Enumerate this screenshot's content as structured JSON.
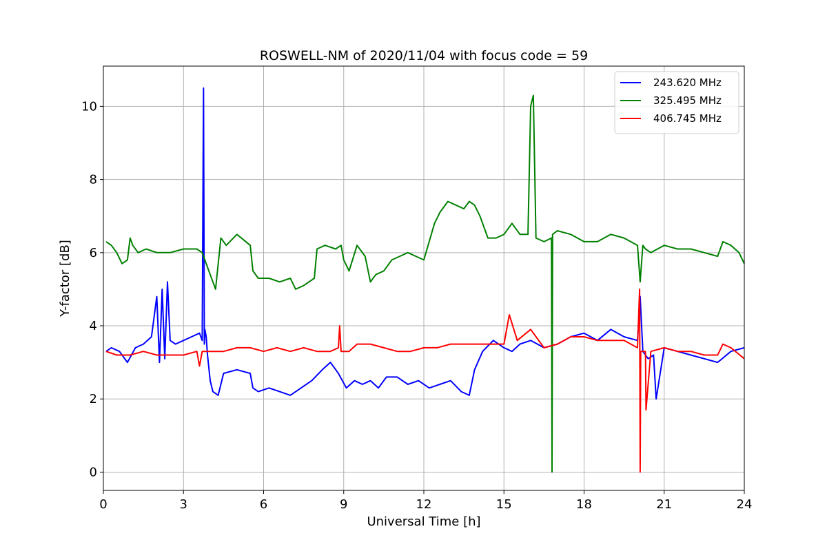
{
  "chart_data": {
    "type": "line",
    "title": "ROSWELL-NM of 2020/11/04 with focus code = 59",
    "xlabel": "Universal Time [h]",
    "ylabel": "Y-factor [dB]",
    "xlim": [
      0,
      24
    ],
    "ylim": [
      -0.5,
      11.1
    ],
    "xticks": [
      0,
      3,
      6,
      9,
      12,
      15,
      18,
      21,
      24
    ],
    "yticks": [
      0,
      2,
      4,
      6,
      8,
      10
    ],
    "grid": true,
    "legend_position": "top-right",
    "series": [
      {
        "name": "243.620 MHz",
        "color": "#0000ff",
        "x": [
          0.1,
          0.3,
          0.6,
          0.9,
          1.2,
          1.5,
          1.8,
          2.0,
          2.1,
          2.2,
          2.3,
          2.4,
          2.5,
          2.7,
          3.0,
          3.3,
          3.6,
          3.7,
          3.75,
          3.78,
          3.8,
          3.85,
          3.9,
          4.0,
          4.1,
          4.3,
          4.5,
          5.0,
          5.5,
          5.6,
          5.8,
          6.2,
          6.6,
          7.0,
          7.4,
          7.8,
          8.2,
          8.5,
          8.8,
          9.1,
          9.4,
          9.7,
          10.0,
          10.3,
          10.6,
          11.0,
          11.4,
          11.8,
          12.2,
          12.6,
          13.0,
          13.4,
          13.7,
          13.9,
          14.2,
          14.6,
          15.0,
          15.3,
          15.6,
          16.0,
          16.5,
          17.0,
          17.5,
          18.0,
          18.5,
          19.0,
          19.5,
          20.0,
          20.1,
          20.2,
          20.4,
          20.6,
          20.7,
          21.0,
          21.5,
          22.0,
          22.5,
          23.0,
          23.5,
          24.0
        ],
        "y": [
          3.3,
          3.4,
          3.3,
          3.0,
          3.4,
          3.5,
          3.7,
          4.8,
          3.0,
          5.0,
          3.1,
          5.2,
          3.6,
          3.5,
          3.6,
          3.7,
          3.8,
          3.6,
          10.5,
          3.5,
          3.9,
          3.7,
          3.2,
          2.5,
          2.2,
          2.1,
          2.7,
          2.8,
          2.7,
          2.3,
          2.2,
          2.3,
          2.2,
          2.1,
          2.3,
          2.5,
          2.8,
          3.0,
          2.7,
          2.3,
          2.5,
          2.4,
          2.5,
          2.3,
          2.6,
          2.6,
          2.4,
          2.5,
          2.3,
          2.4,
          2.5,
          2.2,
          2.1,
          2.8,
          3.3,
          3.6,
          3.4,
          3.3,
          3.5,
          3.6,
          3.4,
          3.5,
          3.7,
          3.8,
          3.6,
          3.9,
          3.7,
          3.6,
          4.8,
          3.3,
          3.1,
          3.2,
          2.0,
          3.4,
          3.3,
          3.2,
          3.1,
          3.0,
          3.3,
          3.4
        ]
      },
      {
        "name": "325.495 MHz",
        "color": "#008000",
        "x": [
          0.1,
          0.3,
          0.5,
          0.7,
          0.9,
          1.0,
          1.1,
          1.3,
          1.6,
          2.0,
          2.5,
          3.0,
          3.5,
          3.7,
          3.8,
          3.9,
          4.0,
          4.2,
          4.4,
          4.6,
          5.0,
          5.5,
          5.6,
          5.8,
          6.2,
          6.6,
          7.0,
          7.2,
          7.5,
          7.9,
          8.0,
          8.3,
          8.7,
          8.9,
          9.0,
          9.2,
          9.5,
          9.8,
          10.0,
          10.2,
          10.5,
          10.8,
          11.1,
          11.4,
          11.7,
          12.0,
          12.4,
          12.6,
          12.9,
          13.2,
          13.5,
          13.7,
          13.9,
          14.1,
          14.4,
          14.7,
          15.0,
          15.3,
          15.6,
          15.9,
          16.0,
          16.1,
          16.2,
          16.5,
          16.78,
          16.8,
          16.82,
          17.0,
          17.5,
          18.0,
          18.5,
          19.0,
          19.5,
          20.0,
          20.1,
          20.2,
          20.3,
          20.5,
          21.0,
          21.5,
          22.0,
          22.5,
          23.0,
          23.2,
          23.5,
          23.8,
          24.0
        ],
        "y": [
          6.3,
          6.2,
          6.0,
          5.7,
          5.8,
          6.4,
          6.2,
          6.0,
          6.1,
          6.0,
          6.0,
          6.1,
          6.1,
          6.0,
          5.8,
          5.6,
          5.4,
          5.0,
          6.4,
          6.2,
          6.5,
          6.2,
          5.5,
          5.3,
          5.3,
          5.2,
          5.3,
          5.0,
          5.1,
          5.3,
          6.1,
          6.2,
          6.1,
          6.2,
          5.8,
          5.5,
          6.2,
          5.9,
          5.2,
          5.4,
          5.5,
          5.8,
          5.9,
          6.0,
          5.9,
          5.8,
          6.8,
          7.1,
          7.4,
          7.3,
          7.2,
          7.4,
          7.3,
          7.0,
          6.4,
          6.4,
          6.5,
          6.8,
          6.5,
          6.5,
          10.0,
          10.3,
          6.4,
          6.3,
          6.4,
          0.0,
          6.5,
          6.6,
          6.5,
          6.3,
          6.3,
          6.5,
          6.4,
          6.2,
          5.2,
          6.2,
          6.1,
          6.0,
          6.2,
          6.1,
          6.1,
          6.0,
          5.9,
          6.3,
          6.2,
          6.0,
          5.7
        ]
      },
      {
        "name": "406.745 MHz",
        "color": "#ff0000",
        "x": [
          0.1,
          0.5,
          1.0,
          1.5,
          2.0,
          2.5,
          3.0,
          3.5,
          3.6,
          3.7,
          4.0,
          4.5,
          5.0,
          5.5,
          6.0,
          6.5,
          7.0,
          7.5,
          8.0,
          8.5,
          8.8,
          8.85,
          8.9,
          9.2,
          9.5,
          10.0,
          10.5,
          11.0,
          11.5,
          12.0,
          12.5,
          13.0,
          13.5,
          14.0,
          14.5,
          15.0,
          15.2,
          15.5,
          16.0,
          16.5,
          17.0,
          17.5,
          18.0,
          18.5,
          19.0,
          19.5,
          20.0,
          20.08,
          20.1,
          20.12,
          20.3,
          20.32,
          20.5,
          21.0,
          21.5,
          22.0,
          22.5,
          23.0,
          23.2,
          23.5,
          24.0
        ],
        "y": [
          3.3,
          3.2,
          3.2,
          3.3,
          3.2,
          3.2,
          3.2,
          3.3,
          2.9,
          3.3,
          3.3,
          3.3,
          3.4,
          3.4,
          3.3,
          3.4,
          3.3,
          3.4,
          3.3,
          3.3,
          3.4,
          4.0,
          3.3,
          3.3,
          3.5,
          3.5,
          3.4,
          3.3,
          3.3,
          3.4,
          3.4,
          3.5,
          3.5,
          3.5,
          3.5,
          3.5,
          4.3,
          3.6,
          3.9,
          3.4,
          3.5,
          3.7,
          3.7,
          3.6,
          3.6,
          3.6,
          3.4,
          5.0,
          0.0,
          3.3,
          3.3,
          1.7,
          3.3,
          3.4,
          3.3,
          3.3,
          3.2,
          3.2,
          3.5,
          3.4,
          3.1
        ]
      }
    ]
  }
}
